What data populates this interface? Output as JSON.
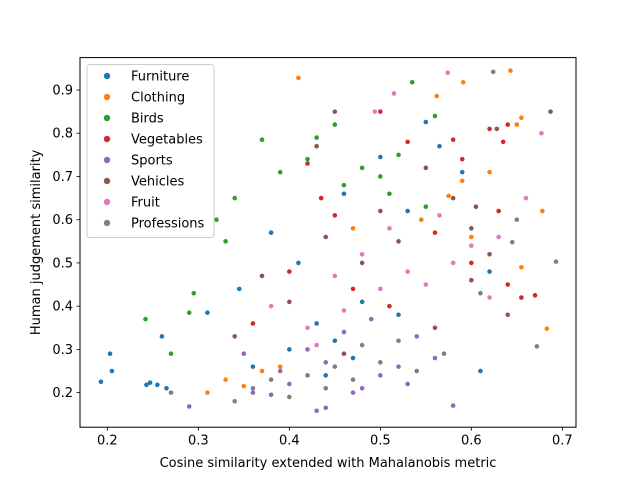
{
  "chart_data": {
    "type": "scatter",
    "xlabel": "Cosine similarity extended with Mahalanobis metric",
    "ylabel": "Human judgement similarity",
    "xlim": [
      0.17,
      0.715
    ],
    "ylim": [
      0.12,
      0.975
    ],
    "grid": false,
    "legend_position": "top-left",
    "x_ticks": [
      "0.2",
      "0.3",
      "0.4",
      "0.5",
      "0.6",
      "0.7"
    ],
    "y_ticks": [
      "0.2",
      "0.3",
      "0.4",
      "0.5",
      "0.6",
      "0.7",
      "0.8",
      "0.9"
    ],
    "series": [
      {
        "name": "Furniture",
        "color": "#1f77b4",
        "points": [
          [
            0.193,
            0.225
          ],
          [
            0.203,
            0.29
          ],
          [
            0.205,
            0.25
          ],
          [
            0.243,
            0.218
          ],
          [
            0.247,
            0.223
          ],
          [
            0.255,
            0.218
          ],
          [
            0.26,
            0.33
          ],
          [
            0.265,
            0.21
          ],
          [
            0.31,
            0.385
          ],
          [
            0.345,
            0.44
          ],
          [
            0.4,
            0.3
          ],
          [
            0.41,
            0.5
          ],
          [
            0.43,
            0.36
          ],
          [
            0.46,
            0.66
          ],
          [
            0.5,
            0.745
          ],
          [
            0.55,
            0.826
          ],
          [
            0.565,
            0.77
          ],
          [
            0.59,
            0.71
          ],
          [
            0.61,
            0.25
          ],
          [
            0.62,
            0.48
          ],
          [
            0.45,
            0.32
          ],
          [
            0.48,
            0.41
          ],
          [
            0.52,
            0.38
          ],
          [
            0.36,
            0.26
          ],
          [
            0.38,
            0.57
          ],
          [
            0.53,
            0.62
          ],
          [
            0.44,
            0.24
          ],
          [
            0.47,
            0.28
          ]
        ]
      },
      {
        "name": "Clothing",
        "color": "#ff7f0e",
        "points": [
          [
            0.41,
            0.928
          ],
          [
            0.643,
            0.945
          ],
          [
            0.591,
            0.918
          ],
          [
            0.562,
            0.886
          ],
          [
            0.655,
            0.836
          ],
          [
            0.65,
            0.82
          ],
          [
            0.678,
            0.62
          ],
          [
            0.683,
            0.348
          ],
          [
            0.655,
            0.49
          ],
          [
            0.62,
            0.71
          ],
          [
            0.59,
            0.69
          ],
          [
            0.575,
            0.655
          ],
          [
            0.545,
            0.6
          ],
          [
            0.6,
            0.56
          ],
          [
            0.47,
            0.58
          ],
          [
            0.31,
            0.2
          ],
          [
            0.33,
            0.23
          ],
          [
            0.35,
            0.215
          ],
          [
            0.37,
            0.25
          ],
          [
            0.39,
            0.26
          ]
        ]
      },
      {
        "name": "Birds",
        "color": "#2ca02c",
        "points": [
          [
            0.242,
            0.37
          ],
          [
            0.27,
            0.29
          ],
          [
            0.29,
            0.385
          ],
          [
            0.295,
            0.43
          ],
          [
            0.34,
            0.65
          ],
          [
            0.37,
            0.785
          ],
          [
            0.43,
            0.79
          ],
          [
            0.45,
            0.82
          ],
          [
            0.535,
            0.918
          ],
          [
            0.56,
            0.84
          ],
          [
            0.48,
            0.72
          ],
          [
            0.5,
            0.7
          ],
          [
            0.52,
            0.75
          ],
          [
            0.33,
            0.55
          ],
          [
            0.32,
            0.6
          ],
          [
            0.39,
            0.71
          ],
          [
            0.42,
            0.74
          ],
          [
            0.46,
            0.68
          ],
          [
            0.51,
            0.66
          ],
          [
            0.55,
            0.63
          ]
        ]
      },
      {
        "name": "Vegetables",
        "color": "#d62728",
        "points": [
          [
            0.435,
            0.65
          ],
          [
            0.58,
            0.785
          ],
          [
            0.62,
            0.81
          ],
          [
            0.635,
            0.78
          ],
          [
            0.64,
            0.82
          ],
          [
            0.67,
            0.425
          ],
          [
            0.655,
            0.42
          ],
          [
            0.64,
            0.45
          ],
          [
            0.53,
            0.78
          ],
          [
            0.5,
            0.85
          ],
          [
            0.42,
            0.73
          ],
          [
            0.45,
            0.61
          ],
          [
            0.56,
            0.57
          ],
          [
            0.6,
            0.5
          ],
          [
            0.4,
            0.48
          ],
          [
            0.47,
            0.44
          ],
          [
            0.51,
            0.4
          ],
          [
            0.36,
            0.36
          ],
          [
            0.63,
            0.62
          ],
          [
            0.59,
            0.74
          ]
        ]
      },
      {
        "name": "Sports",
        "color": "#9467bd",
        "points": [
          [
            0.29,
            0.168
          ],
          [
            0.43,
            0.158
          ],
          [
            0.44,
            0.165
          ],
          [
            0.36,
            0.2
          ],
          [
            0.38,
            0.195
          ],
          [
            0.48,
            0.21
          ],
          [
            0.5,
            0.24
          ],
          [
            0.52,
            0.26
          ],
          [
            0.42,
            0.3
          ],
          [
            0.46,
            0.34
          ],
          [
            0.54,
            0.33
          ],
          [
            0.56,
            0.28
          ],
          [
            0.58,
            0.17
          ],
          [
            0.4,
            0.22
          ],
          [
            0.44,
            0.27
          ],
          [
            0.49,
            0.37
          ],
          [
            0.35,
            0.29
          ],
          [
            0.47,
            0.2
          ],
          [
            0.53,
            0.22
          ],
          [
            0.39,
            0.25
          ]
        ]
      },
      {
        "name": "Vehicles",
        "color": "#8c564b",
        "points": [
          [
            0.605,
            0.63
          ],
          [
            0.628,
            0.81
          ],
          [
            0.687,
            0.85
          ],
          [
            0.6,
            0.58
          ],
          [
            0.5,
            0.62
          ],
          [
            0.45,
            0.85
          ],
          [
            0.43,
            0.77
          ],
          [
            0.55,
            0.72
          ],
          [
            0.58,
            0.65
          ],
          [
            0.52,
            0.55
          ],
          [
            0.48,
            0.5
          ],
          [
            0.4,
            0.41
          ],
          [
            0.37,
            0.47
          ],
          [
            0.44,
            0.56
          ],
          [
            0.62,
            0.52
          ],
          [
            0.64,
            0.38
          ],
          [
            0.34,
            0.33
          ],
          [
            0.46,
            0.29
          ],
          [
            0.56,
            0.35
          ],
          [
            0.6,
            0.46
          ]
        ]
      },
      {
        "name": "Fruit",
        "color": "#e377c2",
        "points": [
          [
            0.494,
            0.85
          ],
          [
            0.515,
            0.892
          ],
          [
            0.574,
            0.94
          ],
          [
            0.677,
            0.8
          ],
          [
            0.66,
            0.65
          ],
          [
            0.6,
            0.54
          ],
          [
            0.63,
            0.56
          ],
          [
            0.565,
            0.61
          ],
          [
            0.53,
            0.48
          ],
          [
            0.5,
            0.44
          ],
          [
            0.48,
            0.52
          ],
          [
            0.46,
            0.39
          ],
          [
            0.42,
            0.35
          ],
          [
            0.38,
            0.4
          ],
          [
            0.55,
            0.45
          ],
          [
            0.58,
            0.5
          ],
          [
            0.45,
            0.47
          ],
          [
            0.51,
            0.58
          ],
          [
            0.62,
            0.42
          ],
          [
            0.43,
            0.31
          ]
        ]
      },
      {
        "name": "Professions",
        "color": "#7f7f7f",
        "points": [
          [
            0.27,
            0.2
          ],
          [
            0.624,
            0.942
          ],
          [
            0.645,
            0.548
          ],
          [
            0.693,
            0.503
          ],
          [
            0.672,
            0.307
          ],
          [
            0.65,
            0.6
          ],
          [
            0.61,
            0.43
          ],
          [
            0.47,
            0.23
          ],
          [
            0.44,
            0.21
          ],
          [
            0.4,
            0.19
          ],
          [
            0.36,
            0.21
          ],
          [
            0.34,
            0.18
          ],
          [
            0.5,
            0.27
          ],
          [
            0.54,
            0.25
          ],
          [
            0.57,
            0.29
          ],
          [
            0.45,
            0.26
          ],
          [
            0.42,
            0.24
          ],
          [
            0.48,
            0.31
          ],
          [
            0.52,
            0.32
          ],
          [
            0.38,
            0.23
          ]
        ]
      }
    ]
  }
}
